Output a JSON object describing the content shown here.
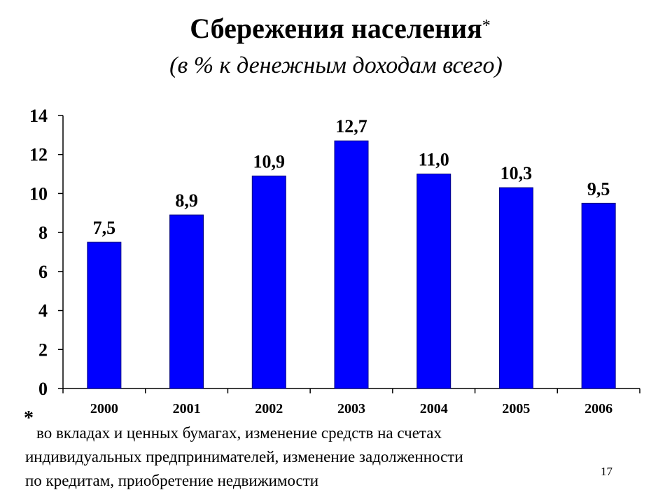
{
  "slide": {
    "title": "Сбережения населения",
    "title_mark": "*",
    "subtitle": "(в % к денежным доходам всего)",
    "footnote_mark": "*",
    "footnote_lines": [
      "во вкладах и ценных бумагах, изменение средств на счетах",
      "индивидуальных предпринимателей, изменение задолженности",
      "по кредитам, приобретение недвижимости"
    ],
    "page_number": "17"
  },
  "chart_data": {
    "type": "bar",
    "categories": [
      "2000",
      "2001",
      "2002",
      "2003",
      "2004",
      "2005",
      "2006"
    ],
    "values": [
      7.5,
      8.9,
      10.9,
      12.7,
      11.0,
      10.3,
      9.5
    ],
    "data_labels": [
      "7,5",
      "8,9",
      "10,9",
      "12,7",
      "11,0",
      "10,3",
      "9,5"
    ],
    "ylim": [
      0,
      14
    ],
    "yticks": [
      0,
      2,
      4,
      6,
      8,
      10,
      12,
      14
    ],
    "grid": false,
    "bar_color": "#0000ff",
    "bar_edge_color": "#000080"
  }
}
